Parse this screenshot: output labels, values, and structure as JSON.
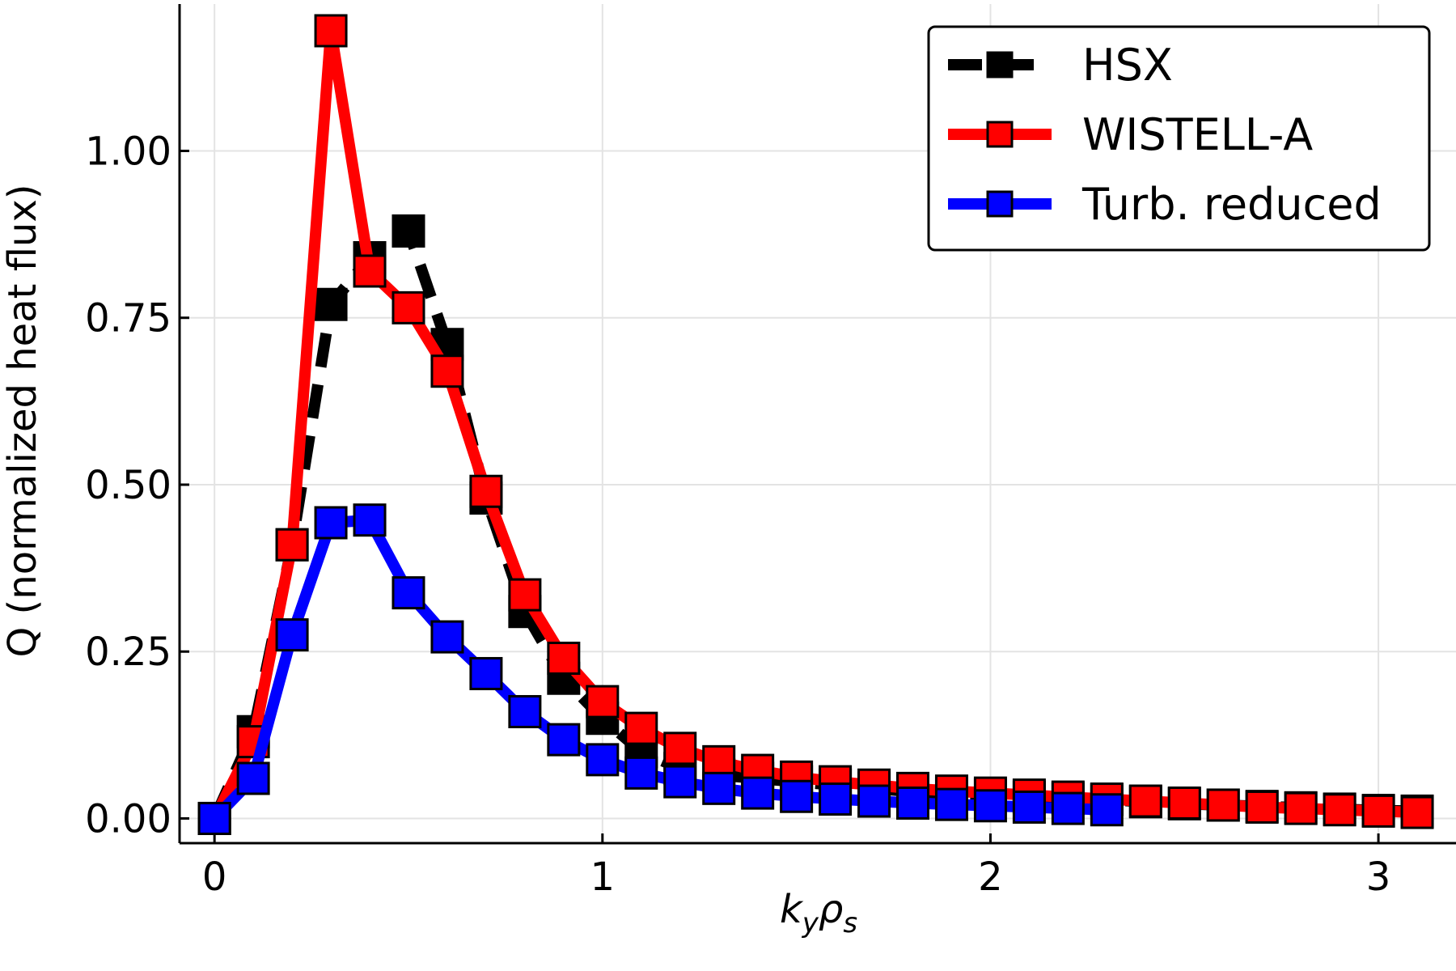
{
  "chart_data": {
    "type": "line",
    "xlabel_main": "k",
    "xlabel_sub1": "y",
    "xlabel_rho": "ρ",
    "xlabel_sub2": "s",
    "ylabel": "Q (normalized heat flux)",
    "xlim": [
      -0.09,
      3.2
    ],
    "ylim": [
      -0.037,
      1.22
    ],
    "xticks": [
      0,
      1,
      2,
      3
    ],
    "xtick_labels": [
      "0",
      "1",
      "2",
      "3"
    ],
    "yticks": [
      0,
      0.25,
      0.5,
      0.75,
      1.0
    ],
    "ytick_labels": [
      "0.00",
      "0.25",
      "0.50",
      "0.75",
      "1.00"
    ],
    "grid": true,
    "legend_position": "top-right",
    "series": [
      {
        "name": "HSX",
        "color": "#000000",
        "line_style": "dashed",
        "x": [
          0,
          0.1,
          0.2,
          0.3,
          0.4,
          0.5,
          0.6,
          0.7,
          0.8,
          0.9,
          1.0,
          1.1,
          1.2,
          1.3,
          1.4,
          1.5,
          1.6,
          1.7,
          1.8,
          1.9,
          2.0,
          2.1,
          2.2,
          2.3,
          2.4,
          2.5,
          2.6,
          2.7,
          2.8,
          2.9,
          3.0,
          3.1
        ],
        "y": [
          0.0,
          0.13,
          0.41,
          0.77,
          0.84,
          0.88,
          0.71,
          0.48,
          0.31,
          0.21,
          0.15,
          0.1,
          0.075,
          0.065,
          0.06,
          0.055,
          0.05,
          0.045,
          0.04,
          0.037,
          0.035,
          0.032,
          0.03,
          0.028,
          0.025,
          0.022,
          0.02,
          0.018,
          0.016,
          0.014,
          0.012,
          0.011
        ]
      },
      {
        "name": "WISTELL-A",
        "color": "#ff0000",
        "line_style": "solid",
        "x": [
          0,
          0.1,
          0.2,
          0.3,
          0.4,
          0.5,
          0.6,
          0.7,
          0.8,
          0.9,
          1.0,
          1.1,
          1.2,
          1.3,
          1.4,
          1.5,
          1.6,
          1.7,
          1.8,
          1.9,
          2.0,
          2.1,
          2.2,
          2.3,
          2.4,
          2.5,
          2.6,
          2.7,
          2.8,
          2.9,
          3.0,
          3.1
        ],
        "y": [
          0.0,
          0.115,
          0.41,
          1.18,
          0.82,
          0.765,
          0.67,
          0.49,
          0.335,
          0.24,
          0.175,
          0.135,
          0.105,
          0.085,
          0.072,
          0.062,
          0.055,
          0.05,
          0.045,
          0.041,
          0.038,
          0.035,
          0.032,
          0.029,
          0.026,
          0.023,
          0.02,
          0.017,
          0.015,
          0.013,
          0.011,
          0.009
        ]
      },
      {
        "name": "Turb. reduced",
        "color": "#0000ff",
        "line_style": "solid",
        "x": [
          0,
          0.1,
          0.2,
          0.3,
          0.4,
          0.5,
          0.6,
          0.7,
          0.8,
          0.9,
          1.0,
          1.1,
          1.2,
          1.3,
          1.4,
          1.5,
          1.6,
          1.7,
          1.8,
          1.9,
          2.0,
          2.1,
          2.2,
          2.3
        ],
        "y": [
          0.0,
          0.06,
          0.275,
          0.443,
          0.447,
          0.338,
          0.272,
          0.217,
          0.16,
          0.118,
          0.088,
          0.068,
          0.055,
          0.045,
          0.038,
          0.033,
          0.029,
          0.026,
          0.023,
          0.021,
          0.019,
          0.017,
          0.015,
          0.013
        ]
      }
    ]
  }
}
